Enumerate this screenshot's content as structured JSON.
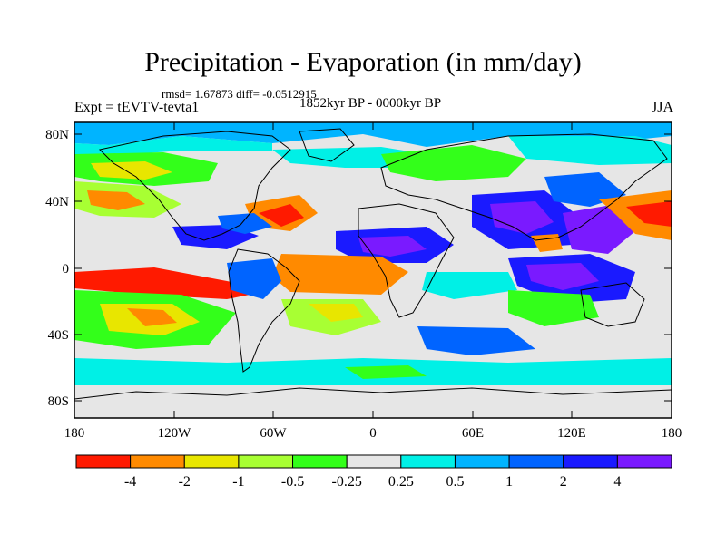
{
  "title": "Precipitation - Evaporation (in mm/day)",
  "stats": "rmsd= 1.67873  diff= -0.0512915",
  "period": "1852kyr BP - 0000kyr BP",
  "expt": "Expt = tEVTV-tevta1",
  "season": "JJA",
  "axes": {
    "lat_labels": [
      "80N",
      "40N",
      "0",
      "40S",
      "80S"
    ],
    "lon_labels": [
      "180",
      "120W",
      "60W",
      "0",
      "60E",
      "120E",
      "180"
    ]
  },
  "colorbar": {
    "colors": [
      "#ff1a00",
      "#ff8a00",
      "#e8e600",
      "#a8ff33",
      "#33ff1a",
      "#e6e6e6",
      "#00f0e6",
      "#00b4ff",
      "#0064ff",
      "#1a1aff",
      "#7a1aff"
    ],
    "labels": [
      "-4",
      "-2",
      "-1",
      "-0.5",
      "-0.25",
      "0.25",
      "0.5",
      "1",
      "2",
      "4"
    ]
  },
  "colors": {
    "ocean_neutral": "#e6e6e6",
    "coast": "#000000"
  }
}
